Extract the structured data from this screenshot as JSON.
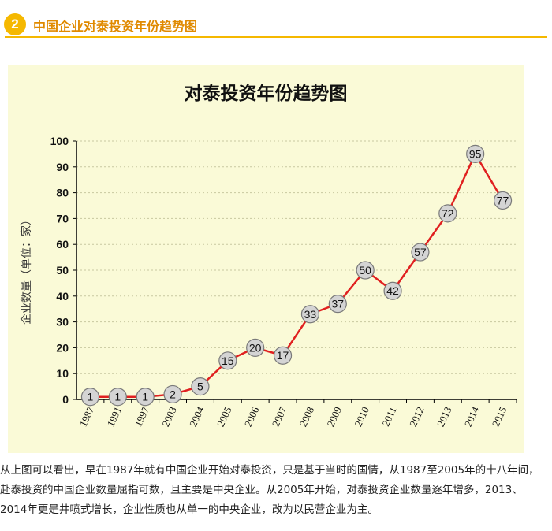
{
  "header": {
    "badge_number": "2",
    "title": "中国企业对泰投资年份趋势图"
  },
  "colors": {
    "accent": "#f5b800",
    "title_text": "#e08a00",
    "panel_bg": "#fafad7",
    "line": "#e02020",
    "marker_fill": "#d4d4d4"
  },
  "chart_data": {
    "type": "line",
    "title": "对泰投资年份趋势图",
    "xlabel": "",
    "ylabel": "企业数量（单位：家）",
    "categories": [
      "1987",
      "1991",
      "1997",
      "2003",
      "2004",
      "2005",
      "2006",
      "2007",
      "2008",
      "2009",
      "2010",
      "2011",
      "2012",
      "2013",
      "2014",
      "2015"
    ],
    "values": [
      1,
      1,
      1,
      2,
      5,
      15,
      20,
      17,
      33,
      37,
      50,
      42,
      57,
      72,
      95,
      77
    ],
    "ylim": [
      0,
      100
    ],
    "yticks": [
      0,
      10,
      20,
      30,
      40,
      50,
      60,
      70,
      80,
      90,
      100
    ],
    "grid": "horizontal dotted",
    "legend": "none"
  },
  "caption": "从上图可以看出，早在1987年就有中国企业开始对泰投资，只是基于当时的国情，从1987至2005年的十八年间，赴泰投资的中国企业数量屈指可数，且主要是中央企业。从2005年开始，对泰投资企业数量逐年增多，2013、2014年更是井喷式增长，企业性质也从单一的中央企业，改为以民营企业为主。"
}
